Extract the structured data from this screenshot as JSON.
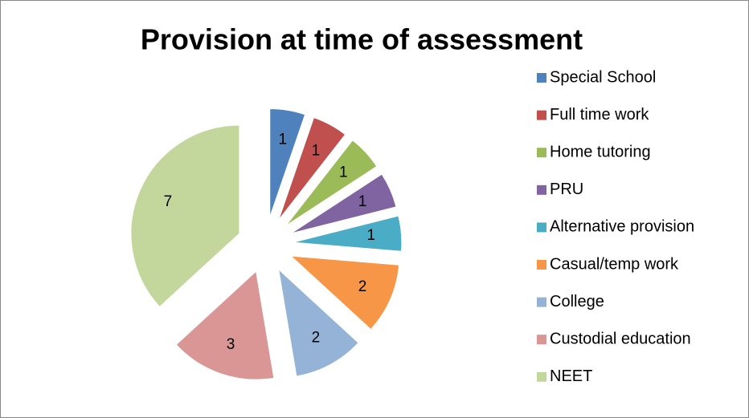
{
  "chart_data": {
    "type": "pie",
    "title": "Provision at time of assessment",
    "categories": [
      "Special School",
      "Full time work",
      "Home tutoring",
      "PRU",
      "Alternative provision",
      "Casual/temp work",
      "College",
      "Custodial education",
      "NEET"
    ],
    "values": [
      1,
      1,
      1,
      1,
      1,
      2,
      2,
      3,
      7
    ],
    "colors": [
      "#4F81BD",
      "#C0504D",
      "#9BBB59",
      "#8064A2",
      "#4BACC6",
      "#F79646",
      "#95B3D7",
      "#D99694",
      "#C3D69B"
    ],
    "legend": "right"
  }
}
